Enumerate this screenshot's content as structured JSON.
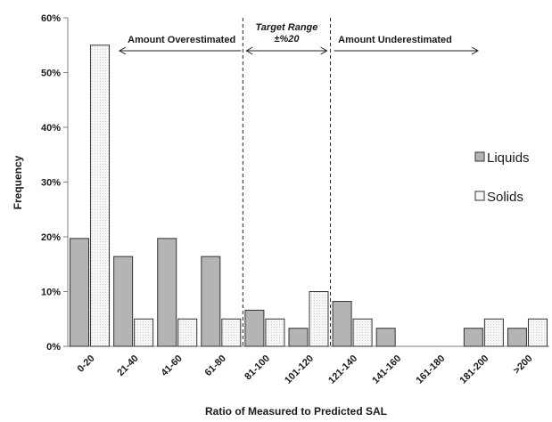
{
  "chart_data": {
    "type": "bar",
    "title": "",
    "xlabel": "Ratio of Measured to Predicted SAL",
    "ylabel": "Frequency",
    "ylim": [
      0,
      60
    ],
    "yticks": [
      "0%",
      "10%",
      "20%",
      "30%",
      "40%",
      "50%",
      "60%"
    ],
    "categories": [
      "0-20",
      "21-40",
      "41-60",
      "61-80",
      "81-100",
      "101-120",
      "121-140",
      "141-160",
      "161-180",
      "181-200",
      ">200"
    ],
    "series": [
      {
        "name": "Liquids",
        "color": "#b4b4b4",
        "values": [
          19.7,
          16.4,
          19.7,
          16.4,
          6.6,
          3.3,
          8.2,
          3.3,
          0,
          3.3,
          3.3
        ]
      },
      {
        "name": "Solids",
        "color": "#f6f6f6",
        "values": [
          55,
          5,
          5,
          5,
          5,
          10,
          5,
          0,
          0,
          5,
          5
        ]
      }
    ],
    "legend_position": "right",
    "grid": false,
    "annotations": {
      "overestimated": "Amount Overestimated",
      "target_line1": "Target Range",
      "target_line2": "±%20",
      "underestimated": "Amount Underestimated"
    },
    "dividers_after_categories": [
      "61-80",
      "101-120"
    ]
  }
}
